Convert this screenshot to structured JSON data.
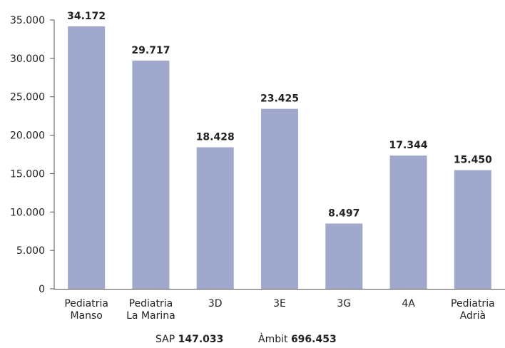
{
  "chart_data": {
    "type": "bar",
    "title": "",
    "xlabel": "",
    "ylabel": "",
    "categories": [
      [
        "Pediatria",
        "Manso"
      ],
      [
        "Pediatria",
        "La Marina"
      ],
      [
        "3D"
      ],
      [
        "3E"
      ],
      [
        "3G"
      ],
      [
        "4A"
      ],
      [
        "Pediatria",
        "Adrià"
      ]
    ],
    "values": [
      34172,
      29717,
      18428,
      23425,
      8497,
      17344,
      15450
    ],
    "value_labels": [
      "34.172",
      "29.717",
      "18.428",
      "23.425",
      "8.497",
      "17.344",
      "15.450"
    ],
    "ylim": [
      0,
      35000
    ],
    "yticks": [
      0,
      5000,
      10000,
      15000,
      20000,
      25000,
      30000,
      35000
    ],
    "ytick_labels": [
      "0",
      "5.000",
      "10.000",
      "15.000",
      "20.000",
      "25.000",
      "30.000",
      "35.000"
    ],
    "grid": false,
    "bar_color": "#a0a9cc"
  },
  "footer": {
    "sap_label": "SAP",
    "sap_value": "147.033",
    "ambit_label": "Àmbit",
    "ambit_value": "696.453"
  }
}
